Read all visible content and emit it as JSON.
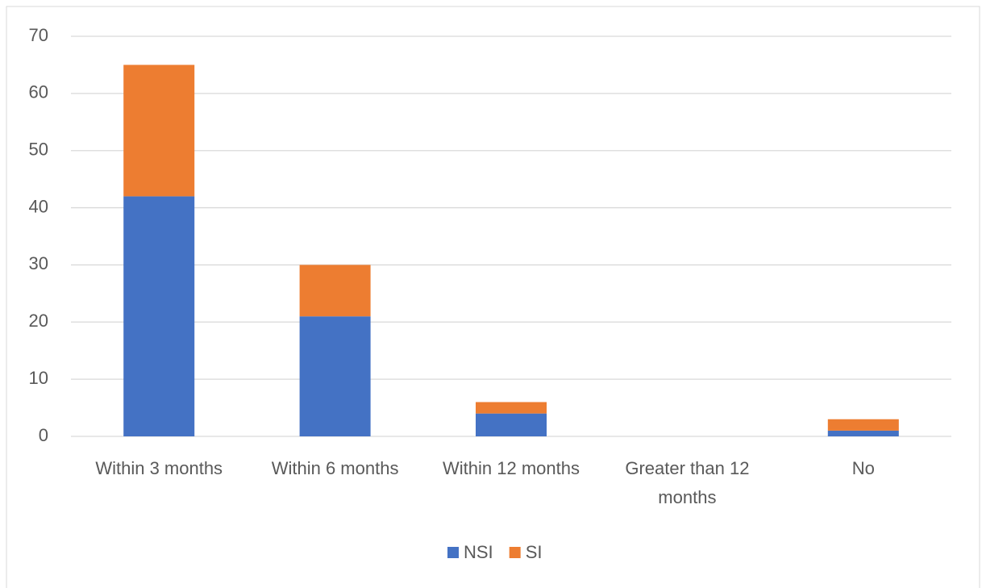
{
  "chart_data": {
    "type": "stacked_bar",
    "categories": [
      "Within 3 months",
      "Within 6 months",
      "Within 12 months",
      "Greater than 12 months",
      "No"
    ],
    "series": [
      {
        "name": "NSI",
        "color": "#4472c4",
        "values": [
          42,
          21,
          4,
          0,
          1
        ]
      },
      {
        "name": "SI",
        "color": "#ed7d31",
        "values": [
          23,
          9,
          2,
          0,
          2
        ]
      }
    ],
    "ylim": [
      0,
      70
    ],
    "yticks": [
      0,
      10,
      20,
      30,
      40,
      50,
      60,
      70
    ],
    "grid": true,
    "legend": "bottom"
  }
}
